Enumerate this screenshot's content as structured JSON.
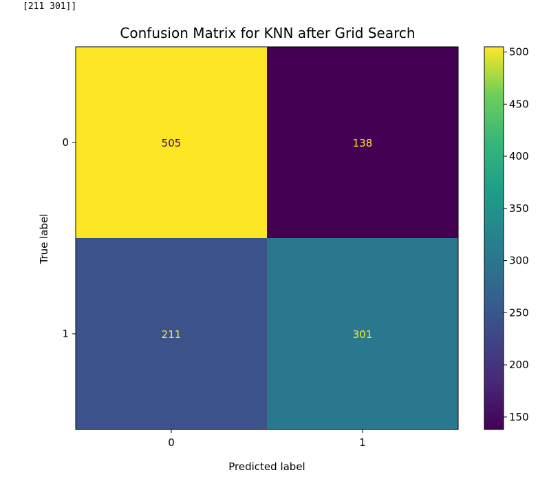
{
  "console": {
    "output_line": "[211 301]]"
  },
  "chart_data": {
    "type": "heatmap",
    "title": "Confusion Matrix for KNN after Grid Search",
    "xlabel": "Predicted label",
    "ylabel": "True label",
    "x_categories": [
      "0",
      "1"
    ],
    "y_categories": [
      "0",
      "1"
    ],
    "matrix": [
      [
        505,
        138
      ],
      [
        211,
        301
      ]
    ],
    "cell_colors": [
      [
        "#fde725",
        "#440154"
      ],
      [
        "#3b528b",
        "#2a788e"
      ]
    ],
    "cell_text_colors": [
      [
        "#440154",
        "#fde725"
      ],
      [
        "#fde725",
        "#fde725"
      ]
    ],
    "colorbar": {
      "range": [
        138,
        505
      ],
      "ticks": [
        150,
        200,
        250,
        300,
        350,
        400,
        450,
        500
      ],
      "colormap": "viridis"
    }
  }
}
